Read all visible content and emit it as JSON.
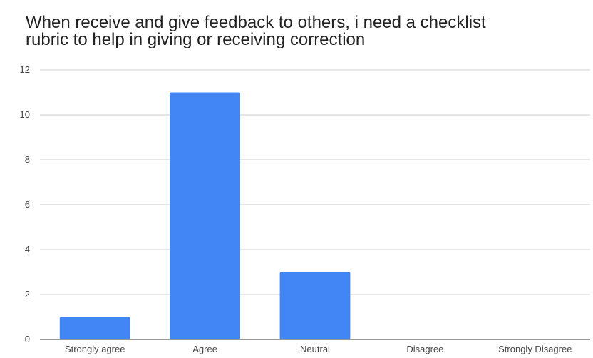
{
  "chart_data": {
    "type": "bar",
    "title_lines": [
      "When receive and give feedback to others, i need a checklist",
      "rubric to help in giving or receiving correction"
    ],
    "categories": [
      "Strongly agree",
      "Agree",
      "Neutral",
      "Disagree",
      "Strongly Disagree"
    ],
    "values": [
      1,
      11,
      3,
      0,
      0
    ],
    "ylim": [
      0,
      12
    ],
    "yticks": [
      "0",
      "2",
      "4",
      "6",
      "8",
      "10",
      "12"
    ],
    "grid": true,
    "legend": "none",
    "bar_color": "#4285f4",
    "xlabel": "",
    "ylabel": ""
  }
}
